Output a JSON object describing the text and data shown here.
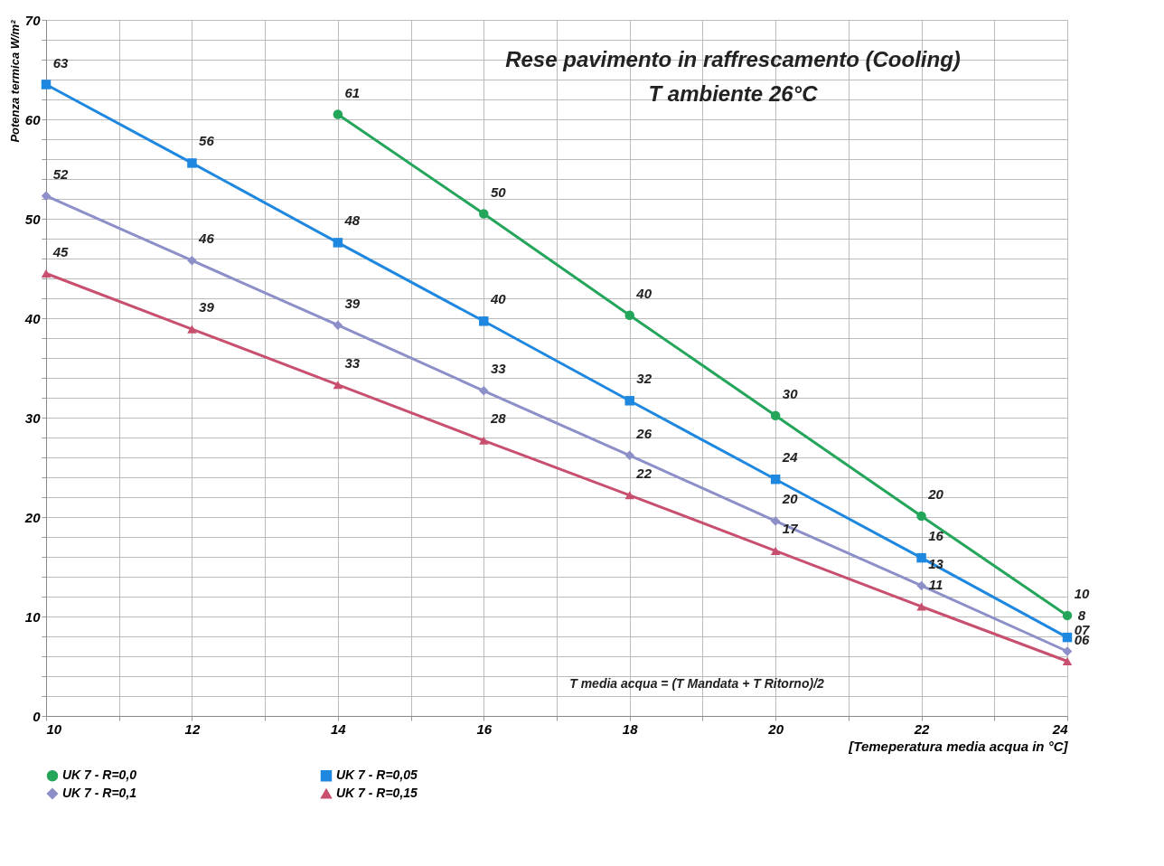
{
  "chart_data": {
    "type": "line",
    "title": [
      "Rese pavimento in raffrescamento (Cooling)",
      "T ambiente 26°C"
    ],
    "xlabel": "[Temeperatura media acqua in °C]",
    "ylabel": "Potenza termica W/m²",
    "annotations": [
      "T media acqua = (T Mandata + T Ritorno)/2"
    ],
    "x": [
      10,
      12,
      14,
      16,
      18,
      20,
      22,
      24
    ],
    "series": [
      {
        "name": "UK 7 - R=0,0",
        "color": "#23a55a",
        "marker": "circle",
        "values": [
          null,
          null,
          60.5,
          50.5,
          40.3,
          30.2,
          20.1,
          10.1
        ],
        "value_labels": [
          null,
          null,
          "61",
          "50",
          "40",
          "30",
          "20",
          "10"
        ]
      },
      {
        "name": "UK 7 - R=0,05",
        "color": "#1e88e0",
        "marker": "square",
        "values": [
          63.5,
          55.6,
          47.6,
          39.7,
          31.7,
          23.8,
          15.9,
          7.9
        ],
        "value_labels": [
          "63",
          "56",
          "48",
          "40",
          "32",
          "24",
          "16",
          "8"
        ]
      },
      {
        "name": "UK 7 - R=0,1",
        "color": "#8c8fc8",
        "marker": "diamond",
        "values": [
          52.3,
          45.8,
          39.3,
          32.7,
          26.2,
          19.6,
          13.1,
          6.5
        ],
        "value_labels": [
          "52",
          "46",
          "39",
          "33",
          "26",
          "20",
          "13",
          "07"
        ]
      },
      {
        "name": "UK 7 - R=0,15",
        "color": "#c8506e",
        "marker": "triangle",
        "values": [
          44.5,
          38.9,
          33.3,
          27.7,
          22.2,
          16.6,
          11.0,
          5.5
        ],
        "value_labels": [
          "45",
          "39",
          "33",
          "28",
          "22",
          "17",
          "11",
          "06"
        ]
      }
    ],
    "xlim": [
      10,
      24
    ],
    "xticks": [
      10,
      {
        "value": 11,
        "label": null
      },
      12,
      {
        "value": 13,
        "label": null
      },
      14,
      {
        "value": 15,
        "label": null
      },
      16,
      {
        "value": 17,
        "label": null
      },
      18,
      {
        "value": 19,
        "label": null
      },
      20,
      {
        "value": 21,
        "label": null
      },
      22,
      {
        "value": 23,
        "label": null
      },
      24
    ],
    "ylim": [
      0,
      70
    ],
    "yticks": [
      0,
      {
        "value": 2,
        "label": null
      },
      {
        "value": 4,
        "label": null
      },
      {
        "value": 6,
        "label": null
      },
      {
        "value": 8,
        "label": null
      },
      10,
      {
        "value": 12,
        "label": null
      },
      {
        "value": 14,
        "label": null
      },
      {
        "value": 16,
        "label": null
      },
      {
        "value": 18,
        "label": null
      },
      20,
      {
        "value": 22,
        "label": null
      },
      {
        "value": 24,
        "label": null
      },
      {
        "value": 26,
        "label": null
      },
      {
        "value": 28,
        "label": null
      },
      30,
      {
        "value": 32,
        "label": null
      },
      {
        "value": 34,
        "label": null
      },
      {
        "value": 36,
        "label": null
      },
      {
        "value": 38,
        "label": null
      },
      40,
      {
        "value": 42,
        "label": null
      },
      {
        "value": 44,
        "label": null
      },
      {
        "value": 46,
        "label": null
      },
      {
        "value": 48,
        "label": null
      },
      50,
      {
        "value": 52,
        "label": null
      },
      {
        "value": 54,
        "label": null
      },
      {
        "value": 56,
        "label": null
      },
      {
        "value": 58,
        "label": null
      },
      60,
      {
        "value": 62,
        "label": null
      },
      {
        "value": 64,
        "label": null
      },
      {
        "value": 66,
        "label": null
      },
      {
        "value": 68,
        "label": null
      },
      70
    ],
    "grid": true,
    "legend": "bottom",
    "line_style": "solid"
  }
}
